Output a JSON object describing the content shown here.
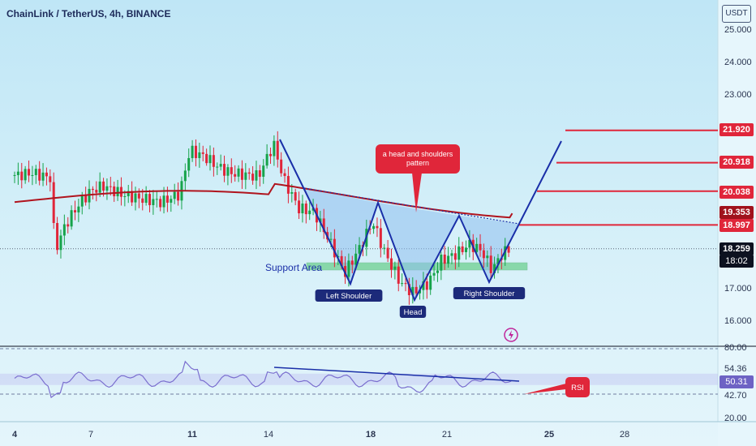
{
  "header": {
    "title": "ChainLink / TetherUS, 4h, BINANCE",
    "currency": "USDT"
  },
  "price_axis": {
    "ticks": [
      "25.000",
      "24.000",
      "23.000",
      "17.000",
      "16.000"
    ]
  },
  "price_badges": [
    {
      "label": "21.920",
      "color": "#e0263a"
    },
    {
      "label": "20.918",
      "color": "#e0263a"
    },
    {
      "label": "20.038",
      "color": "#e0263a"
    },
    {
      "label": "19.353",
      "color": "#a0121c"
    },
    {
      "label": "18.997",
      "color": "#e0263a"
    },
    {
      "label": "18.259",
      "color": "#0d1220"
    },
    {
      "label": "18:02",
      "color": "#0d1220"
    }
  ],
  "time_axis": {
    "labels": [
      {
        "text": "4",
        "bold": true
      },
      {
        "text": "7",
        "bold": false
      },
      {
        "text": "11",
        "bold": true
      },
      {
        "text": "14",
        "bold": false
      },
      {
        "text": "18",
        "bold": true
      },
      {
        "text": "21",
        "bold": false
      },
      {
        "text": "25",
        "bold": true
      },
      {
        "text": "28",
        "bold": false
      }
    ]
  },
  "rsi_axis": {
    "ticks": [
      "80.00",
      "54.36",
      "42.70",
      "20.00"
    ],
    "current": "50.31"
  },
  "annotations": {
    "pattern_callout": "a head and shoulders pattern",
    "support_label": "Support Area",
    "left_shoulder": "Left Shoulder",
    "head": "Head",
    "right_shoulder": "Right Shoulder",
    "rsi_callout": "RSI"
  },
  "colors": {
    "bull": "#16a34a",
    "bear": "#e0263a",
    "ma": "#b0141e",
    "pattern": "#1a2fa8",
    "rsi_line": "#7b6fcf"
  },
  "chart_data": [
    {
      "type": "candlestick",
      "title": "ChainLink / TetherUS, 4h, BINANCE",
      "xlabel": "",
      "ylabel": "",
      "x": [
        "4",
        "7",
        "11",
        "14",
        "18",
        "21",
        "25",
        "28"
      ],
      "ylim": [
        15.4,
        25.6
      ],
      "grid": false,
      "last_price": 18.259,
      "target_levels": [
        21.92,
        20.918,
        20.038,
        18.997
      ],
      "moving_average_last": 19.353,
      "key_points": [
        {
          "label": "Left Shoulder",
          "date": "17",
          "price": 17.15
        },
        {
          "label": "Head",
          "date": "19.7",
          "price": 16.6
        },
        {
          "label": "Right Shoulder",
          "date": "22.6",
          "price": 17.2
        }
      ]
    },
    {
      "type": "line",
      "title": "RSI",
      "ylim": [
        20,
        80
      ],
      "levels": [
        80,
        54.36,
        42.7,
        20
      ],
      "last_value": 50.31
    }
  ]
}
